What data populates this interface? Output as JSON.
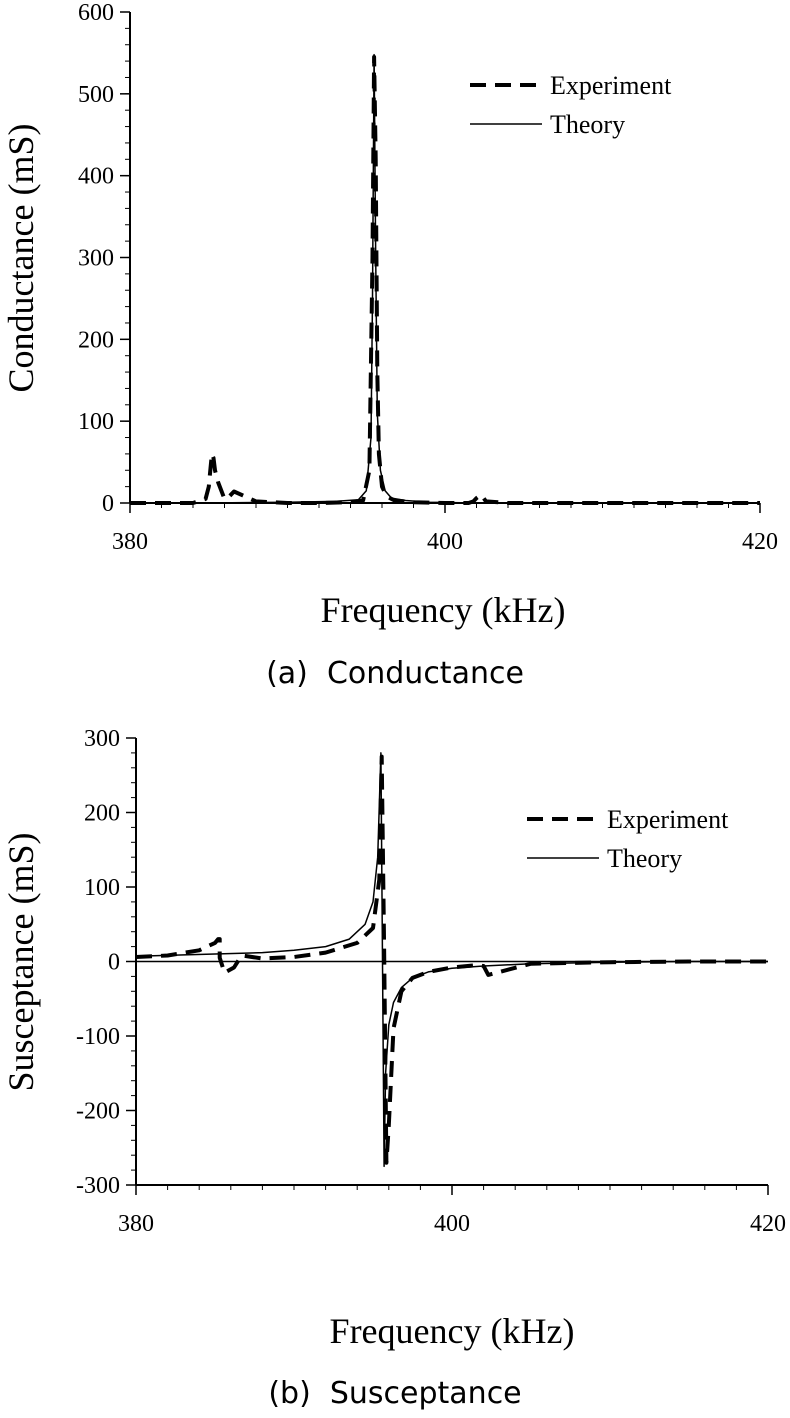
{
  "chart_data": [
    {
      "type": "line",
      "caption": "(a)  Conductance",
      "xlabel": "Frequency (kHz)",
      "ylabel": "Conductance (mS)",
      "xlim": [
        380,
        420
      ],
      "ylim": [
        0,
        600
      ],
      "xticks": [
        "380",
        "400",
        "420"
      ],
      "yticks": [
        "0",
        "100",
        "200",
        "300",
        "400",
        "500",
        "600"
      ],
      "legend_position": "top-right",
      "series": [
        {
          "name": "Experiment",
          "style": "dashed",
          "x": [
            380,
            382,
            384,
            384.8,
            385.0,
            385.1,
            385.2,
            385.3,
            385.4,
            385.6,
            386,
            386.3,
            386.6,
            388,
            390,
            392,
            394,
            394.8,
            395.2,
            395.4,
            395.5,
            395.6,
            395.7,
            395.8,
            396.0,
            396.3,
            396.8,
            398,
            400,
            401.5,
            401.8,
            402.0,
            402.3,
            402.6,
            404,
            410,
            415,
            420
          ],
          "y": [
            0,
            0,
            0,
            5,
            20,
            40,
            60,
            55,
            40,
            25,
            5,
            8,
            14,
            2,
            0,
            0,
            1,
            3,
            40,
            300,
            545,
            420,
            160,
            60,
            20,
            8,
            3,
            1,
            0,
            0,
            2,
            6,
            10,
            2,
            0,
            0,
            0,
            0
          ]
        },
        {
          "name": "Theory",
          "style": "solid",
          "x": [
            380,
            385,
            390,
            393,
            394.5,
            395.0,
            395.3,
            395.4,
            395.5,
            395.6,
            395.7,
            395.9,
            396.2,
            396.6,
            397.5,
            399,
            402,
            408,
            414,
            420
          ],
          "y": [
            0,
            0,
            1,
            2,
            4,
            15,
            80,
            250,
            548,
            300,
            110,
            40,
            15,
            6,
            3,
            1,
            0,
            0,
            0,
            0
          ]
        }
      ]
    },
    {
      "type": "line",
      "caption": "(b)  Susceptance",
      "xlabel": "Frequency (kHz)",
      "ylabel": "Susceptance (mS)",
      "xlim": [
        380,
        420
      ],
      "ylim": [
        -300,
        300
      ],
      "xticks": [
        "380",
        "400",
        "420"
      ],
      "yticks": [
        "-300",
        "-200",
        "-100",
        "0",
        "100",
        "200",
        "300"
      ],
      "legend_position": "top-right",
      "series": [
        {
          "name": "Experiment",
          "style": "dashed",
          "x": [
            380,
            382,
            384,
            385.0,
            385.2,
            385.3,
            385.3,
            385.6,
            386.2,
            386.5,
            386.7,
            388,
            390,
            392,
            394,
            395.0,
            395.4,
            395.55,
            395.7,
            395.85,
            396.0,
            396.3,
            396.8,
            397.5,
            398.5,
            400,
            401.5,
            402.0,
            402.3,
            405,
            410,
            415,
            420
          ],
          "y": [
            6,
            8,
            15,
            25,
            30,
            30,
            5,
            -15,
            -8,
            2,
            8,
            4,
            6,
            12,
            25,
            45,
            110,
            275,
            20,
            -270,
            -220,
            -90,
            -40,
            -22,
            -14,
            -8,
            -5,
            -6,
            -18,
            -3,
            -1,
            0,
            0
          ]
        },
        {
          "name": "Theory",
          "style": "solid",
          "x": [
            380,
            385,
            388,
            390,
            392,
            393.5,
            394.5,
            395.0,
            395.3,
            395.5,
            395.6,
            395.7,
            395.8,
            396.0,
            396.3,
            396.8,
            397.5,
            398.5,
            400,
            402,
            405,
            410,
            415,
            420
          ],
          "y": [
            7,
            10,
            12,
            15,
            20,
            30,
            50,
            80,
            140,
            280,
            0,
            -275,
            -150,
            -85,
            -55,
            -35,
            -22,
            -14,
            -9,
            -6,
            -3,
            -1,
            0,
            0
          ]
        }
      ]
    }
  ]
}
